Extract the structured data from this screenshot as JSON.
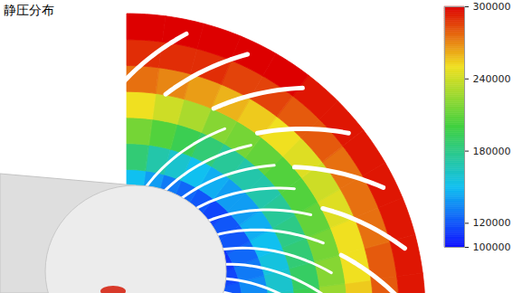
{
  "chart_data": {
    "type": "contour",
    "title": "静圧分布",
    "cells": [
      [
        125000,
        120000,
        115000,
        110000,
        110000,
        105000,
        105000,
        110000,
        110000,
        115000,
        120000,
        130000
      ],
      [
        140000,
        135000,
        130000,
        125000,
        120000,
        120000,
        115000,
        120000,
        125000,
        130000,
        140000,
        150000
      ],
      [
        165000,
        160000,
        155000,
        150000,
        145000,
        140000,
        140000,
        145000,
        150000,
        160000,
        170000,
        185000
      ],
      [
        195000,
        190000,
        185000,
        180000,
        175000,
        170000,
        170000,
        175000,
        185000,
        195000,
        205000,
        215000
      ],
      [
        225000,
        220000,
        215000,
        210000,
        205000,
        205000,
        210000,
        215000,
        220000,
        230000,
        240000,
        250000
      ],
      [
        255000,
        250000,
        250000,
        245000,
        240000,
        245000,
        250000,
        255000,
        260000,
        265000,
        270000,
        275000
      ],
      [
        280000,
        280000,
        275000,
        275000,
        275000,
        280000,
        280000,
        285000,
        285000,
        290000,
        290000,
        290000
      ],
      [
        295000,
        295000,
        295000,
        295000,
        295000,
        295000,
        295000,
        300000,
        300000,
        300000,
        300000,
        300000
      ]
    ],
    "color_range": [
      100000,
      300000
    ],
    "color_ticks": [
      100000,
      120000,
      180000,
      240000,
      300000
    ]
  }
}
